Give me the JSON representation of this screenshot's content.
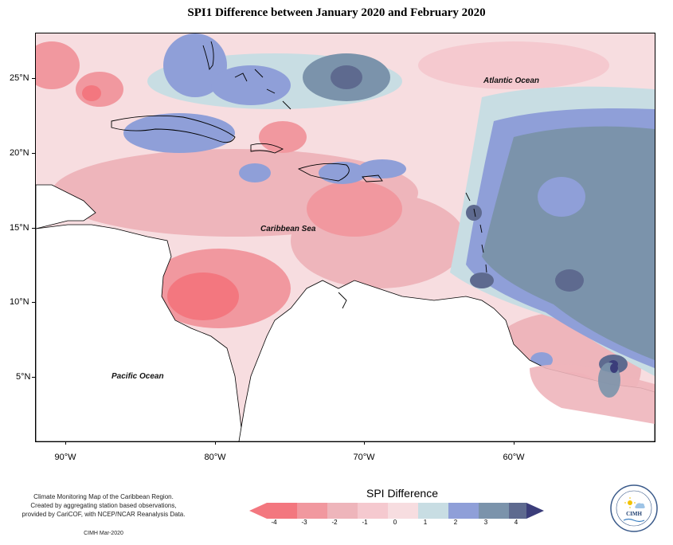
{
  "title": "SPI1 Difference between January 2020 and February 2020",
  "map": {
    "latitude_labels": [
      "25°N",
      "20°N",
      "15°N",
      "10°N",
      "5°N"
    ],
    "longitude_labels": [
      "90°W",
      "80°W",
      "70°W",
      "60°W"
    ],
    "place_labels": {
      "atlantic": "Atlantic Ocean",
      "caribbean": "Caribbean Sea",
      "pacific": "Pacific Ocean"
    },
    "colors": {
      "strong_wet": "#3b3d7a",
      "wet_3": "#5e6a8f",
      "wet_2": "#7b93ab",
      "wet_1": "#8f9fd8",
      "wet_0": "#c8dde3",
      "neutral": "#f7dde0",
      "dry_1": "#f5c9cf",
      "dry_2": "#eeb5bb",
      "dry_3": "#f1989f",
      "dry_4": "#f3777f",
      "land": "#ffffff"
    }
  },
  "legend": {
    "title": "SPI Difference",
    "ticks": [
      "-4",
      "-3",
      "-2",
      "-1",
      "0",
      "1",
      "2",
      "3",
      "4"
    ],
    "colors": [
      "#f3777f",
      "#f1989f",
      "#eeb5bb",
      "#f5c9cf",
      "#f7dde0",
      "#c8dde3",
      "#8f9fd8",
      "#7b93ab",
      "#5e6a8f",
      "#3b3d7a"
    ]
  },
  "credits": {
    "line1": "Climate Monitoring Map of the Caribbean Region.",
    "line2": "Created by aggregating station based observations,",
    "line3": "provided by CariCOF, with NCEP/NCAR Reanalysis Data.",
    "date": "CIMH Mar-2020"
  },
  "logo": {
    "text": "CIMH"
  }
}
